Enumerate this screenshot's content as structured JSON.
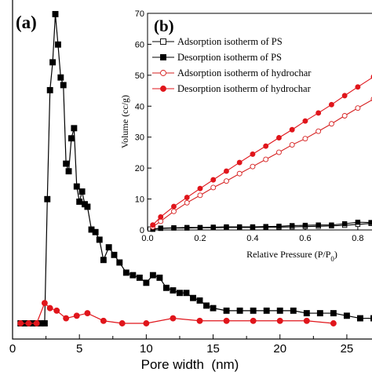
{
  "chart_data": [
    {
      "panel": "(a)",
      "type": "line",
      "xlabel": "Pore width  (nm)",
      "ylabel": "",
      "xlim": [
        0,
        27
      ],
      "ylim": [
        0,
        1.22
      ],
      "x_ticks": [
        0,
        5,
        10,
        15,
        20,
        25
      ],
      "series": [
        {
          "color": "#000000",
          "marker": "filled-square",
          "x": [
            0.6,
            0.9,
            1.2,
            1.5,
            1.8,
            2.1,
            2.4,
            2.6,
            2.8,
            3.0,
            3.2,
            3.4,
            3.6,
            3.8,
            4.0,
            4.2,
            4.4,
            4.6,
            4.8,
            5.0,
            5.2,
            5.4,
            5.6,
            5.9,
            6.2,
            6.5,
            6.8,
            7.2,
            7.6,
            8.0,
            8.5,
            9.0,
            9.5,
            10.0,
            10.5,
            11.0,
            11.5,
            12.0,
            12.5,
            13.0,
            13.5,
            14.0,
            14.5,
            15.0,
            16.0,
            17.0,
            18.0,
            19.0,
            20.0,
            21.0,
            22.0,
            23.0,
            24.0,
            25.0,
            26.0,
            27.0
          ],
          "y": [
            0.0,
            0.0,
            0.0,
            0.0,
            0.0,
            0.0,
            0.0,
            0.49,
            0.92,
            1.03,
            1.22,
            1.1,
            0.97,
            0.94,
            0.63,
            0.6,
            0.73,
            0.77,
            0.54,
            0.48,
            0.52,
            0.47,
            0.46,
            0.37,
            0.36,
            0.33,
            0.25,
            0.3,
            0.27,
            0.24,
            0.2,
            0.19,
            0.18,
            0.16,
            0.19,
            0.18,
            0.14,
            0.13,
            0.12,
            0.12,
            0.1,
            0.09,
            0.07,
            0.06,
            0.05,
            0.05,
            0.05,
            0.05,
            0.05,
            0.05,
            0.04,
            0.04,
            0.04,
            0.03,
            0.02,
            0.02
          ]
        },
        {
          "color": "#e0151b",
          "marker": "filled-circle",
          "x": [
            0.6,
            1.2,
            1.8,
            2.4,
            2.8,
            3.3,
            4.0,
            4.8,
            5.6,
            6.8,
            8.2,
            10.0,
            12.0,
            14.0,
            16.0,
            18.0,
            20.0,
            22.0,
            24.0
          ],
          "y": [
            0.0,
            0.0,
            0.0,
            0.08,
            0.06,
            0.05,
            0.02,
            0.03,
            0.04,
            0.01,
            0.0,
            0.0,
            0.02,
            0.01,
            0.01,
            0.01,
            0.01,
            0.01,
            0.0
          ]
        }
      ]
    },
    {
      "panel": "(b)",
      "type": "line",
      "xlabel": "Relative Pressure (P/P₀)",
      "xlabel_main": "Relative Pressure (P/P",
      "xlabel_sub": "0",
      "xlabel_close": ")",
      "ylabel": "Volume (cc/g)",
      "xlim": [
        0,
        0.86
      ],
      "ylim": [
        0,
        70
      ],
      "x_ticks": [
        "0.0",
        "0.2",
        "0.4",
        "0.6",
        "0.8"
      ],
      "y_ticks": [
        "0",
        "10",
        "20",
        "30",
        "40",
        "50",
        "60",
        "70"
      ],
      "legend": [
        "Adsorption isotherm of PS",
        "Desorption isotherm of PS",
        "Adsorption isotherm of hydrochar",
        "Desorption isotherm of hydrochar"
      ],
      "legend_placement": "top-left inside panel",
      "series": [
        {
          "name": "Adsorption isotherm of PS",
          "color": "#000000",
          "marker": "open-square",
          "x": [
            0.01,
            0.05,
            0.1,
            0.15,
            0.2,
            0.25,
            0.3,
            0.35,
            0.4,
            0.45,
            0.5,
            0.55,
            0.6,
            0.65,
            0.7,
            0.75,
            0.8,
            0.85
          ],
          "y": [
            0.3,
            0.5,
            0.6,
            0.6,
            0.7,
            0.7,
            0.8,
            0.8,
            0.8,
            0.9,
            0.9,
            1.0,
            1.1,
            1.2,
            1.3,
            1.5,
            1.8,
            2.1
          ]
        },
        {
          "name": "Desorption isotherm of PS",
          "color": "#000000",
          "marker": "filled-square",
          "x": [
            0.02,
            0.05,
            0.1,
            0.15,
            0.2,
            0.25,
            0.3,
            0.35,
            0.4,
            0.45,
            0.5,
            0.55,
            0.6,
            0.65,
            0.7,
            0.75,
            0.8,
            0.85
          ],
          "y": [
            0.2,
            0.6,
            0.7,
            0.8,
            0.8,
            0.9,
            1.0,
            1.0,
            1.0,
            1.1,
            1.2,
            1.4,
            1.5,
            1.6,
            1.6,
            2.0,
            2.5,
            2.4
          ]
        },
        {
          "name": "Adsorption isotherm of hydrochar",
          "color": "#d62020",
          "marker": "open-circle",
          "x": [
            0.02,
            0.05,
            0.1,
            0.15,
            0.2,
            0.25,
            0.3,
            0.35,
            0.4,
            0.45,
            0.5,
            0.55,
            0.6,
            0.65,
            0.7,
            0.75,
            0.8,
            0.86
          ],
          "y": [
            1.0,
            2.8,
            6.0,
            8.8,
            11.2,
            13.7,
            15.8,
            18.2,
            20.5,
            22.8,
            25.1,
            27.5,
            29.5,
            31.9,
            34.3,
            36.9,
            39.4,
            42.3
          ]
        },
        {
          "name": "Desorption isotherm of hydrochar",
          "color": "#e0151b",
          "marker": "filled-circle",
          "x": [
            0.02,
            0.05,
            0.1,
            0.15,
            0.2,
            0.25,
            0.3,
            0.35,
            0.4,
            0.45,
            0.5,
            0.55,
            0.6,
            0.65,
            0.7,
            0.75,
            0.8,
            0.86
          ],
          "y": [
            1.6,
            4.2,
            7.6,
            10.5,
            13.4,
            16.2,
            19.0,
            21.8,
            24.5,
            27.1,
            29.8,
            32.4,
            35.2,
            37.8,
            40.5,
            43.4,
            46.2,
            49.5
          ]
        }
      ]
    }
  ]
}
